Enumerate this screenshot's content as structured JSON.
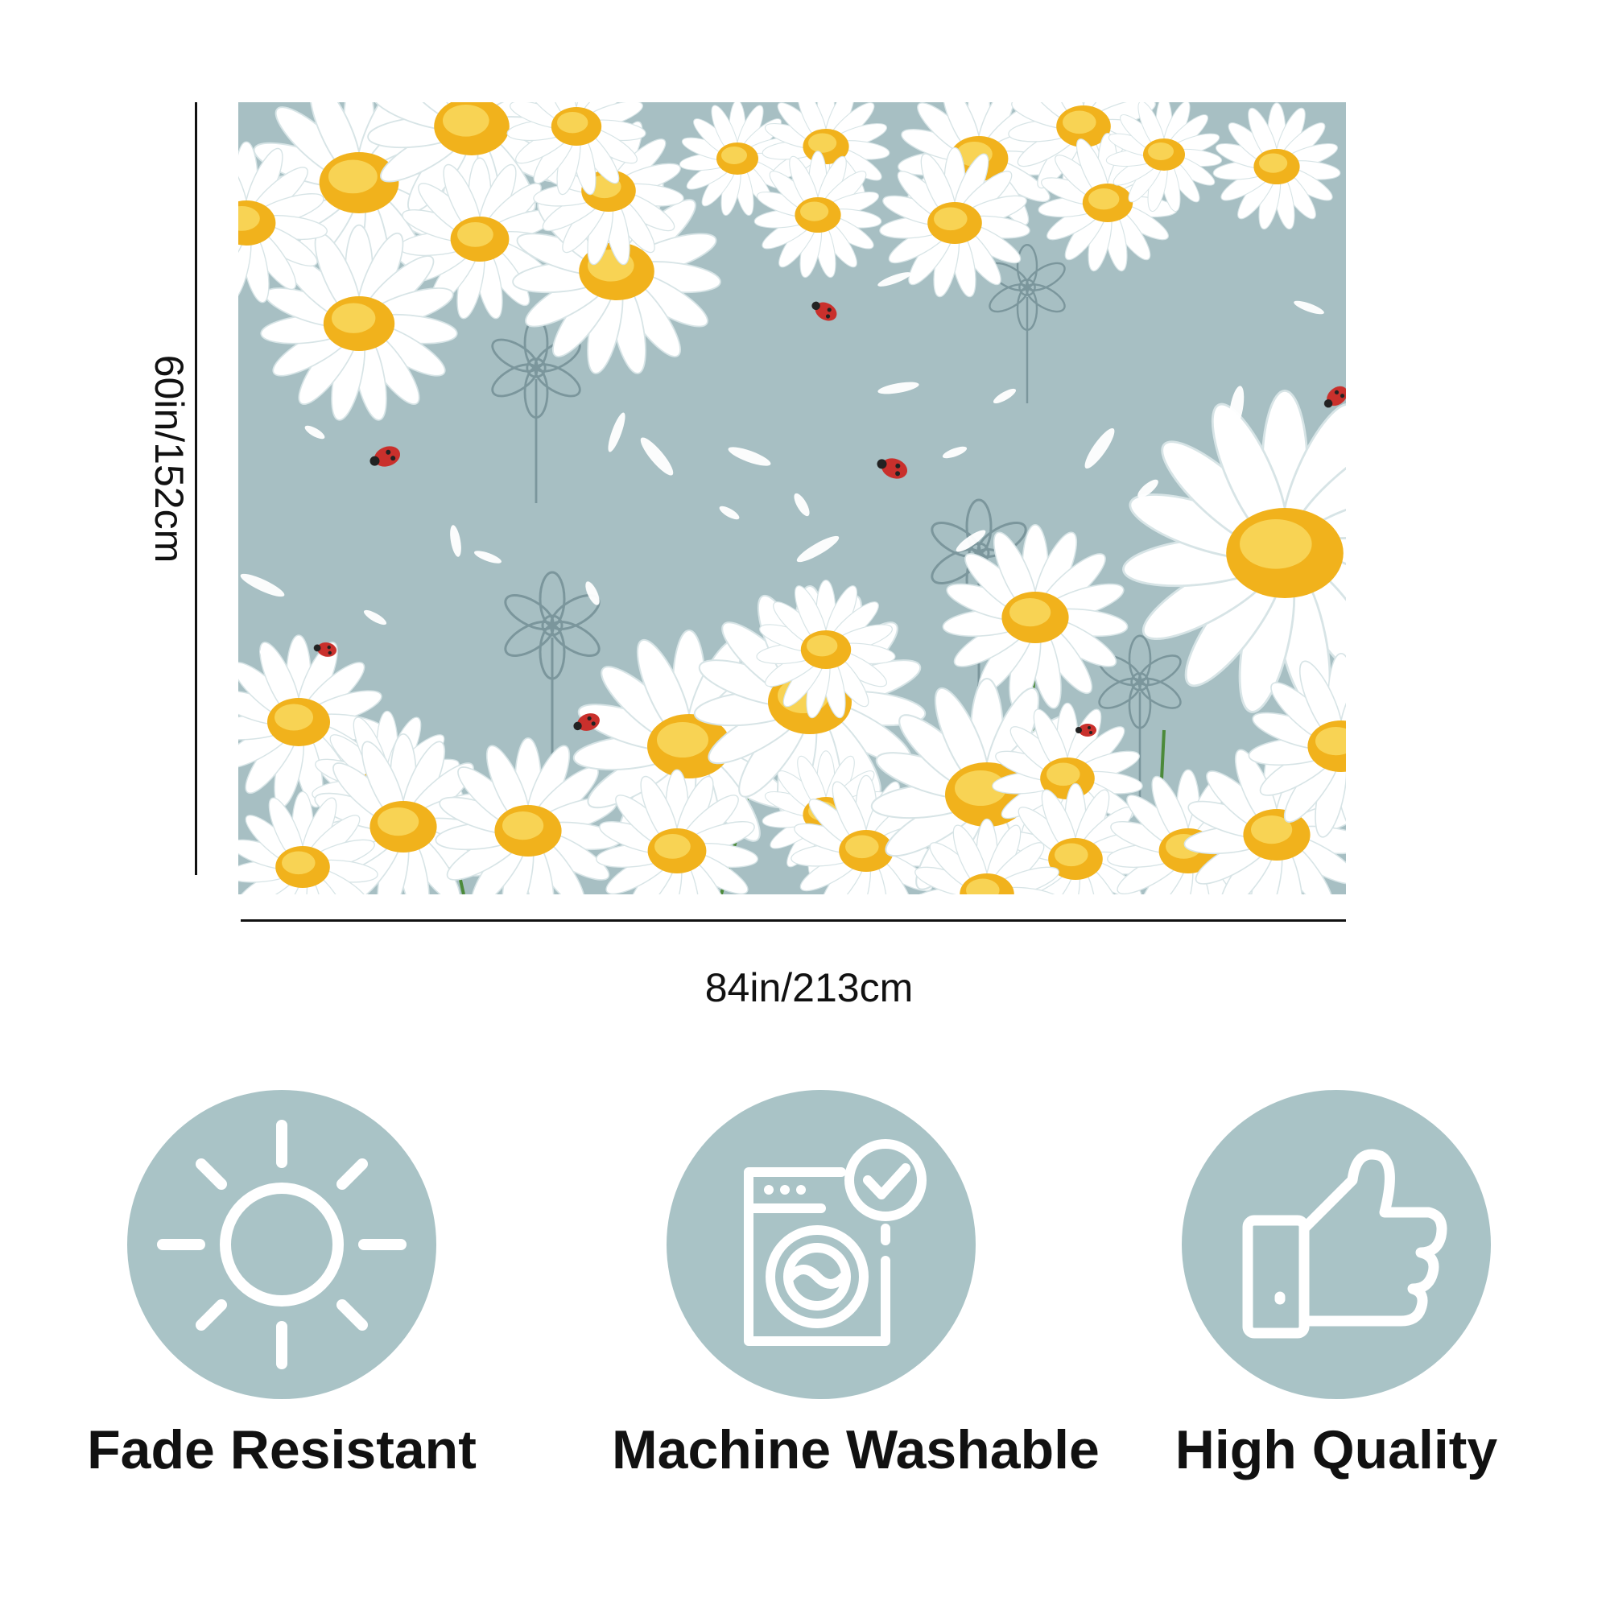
{
  "dimensions": {
    "height_label": "60in/152cm",
    "width_label": "84in/213cm"
  },
  "features": [
    {
      "label": "Fade Resistant",
      "icon": "sun-icon"
    },
    {
      "label": "Machine Washable",
      "icon": "washing-machine-icon"
    },
    {
      "label": "High Quality",
      "icon": "thumbs-up-icon"
    }
  ],
  "colors": {
    "banner_background": "#a7bfc3",
    "icon_circle": "#a9c3c6",
    "daisy_petal": "#ffffff",
    "daisy_center": "#f1b21c",
    "ladybug": "#c9302c"
  }
}
